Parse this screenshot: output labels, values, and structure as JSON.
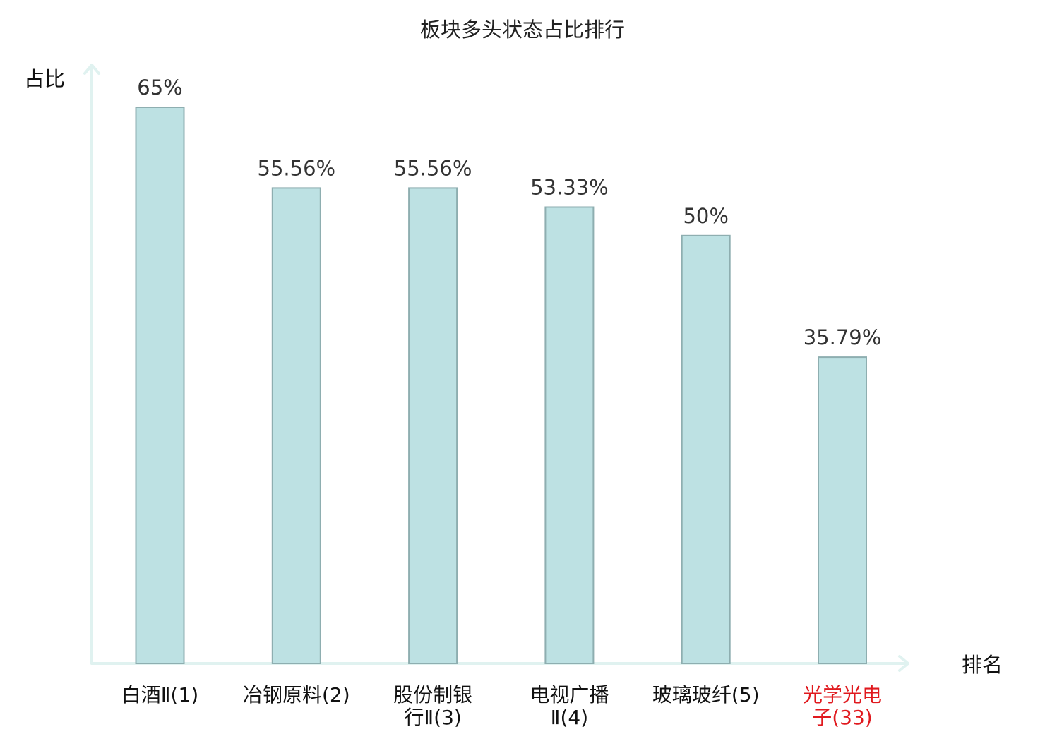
{
  "chart_data": {
    "type": "bar",
    "title": "板块多头状态占比排行",
    "ylabel": "占比",
    "xlabel": "排名",
    "categories": [
      [
        "白酒Ⅱ(1)"
      ],
      [
        "冶钢原料(2)"
      ],
      [
        "股份制银",
        "行Ⅱ(3)"
      ],
      [
        "电视广播",
        "Ⅱ(4)"
      ],
      [
        "玻璃玻纤(5)"
      ],
      [
        "光学光电",
        "子(33)"
      ]
    ],
    "values": [
      65,
      55.56,
      55.56,
      53.33,
      50,
      35.79
    ],
    "value_labels": [
      "65%",
      "55.56%",
      "55.56%",
      "53.33%",
      "50%",
      "35.79%"
    ],
    "highlight_index": 5,
    "ylim": [
      0,
      70
    ],
    "grid": false,
    "colors": {
      "bar_fill": "#bde1e3",
      "bar_stroke": "#8eaeb0",
      "axis": "#e0f2f0",
      "highlight_text": "#e0191e"
    }
  }
}
